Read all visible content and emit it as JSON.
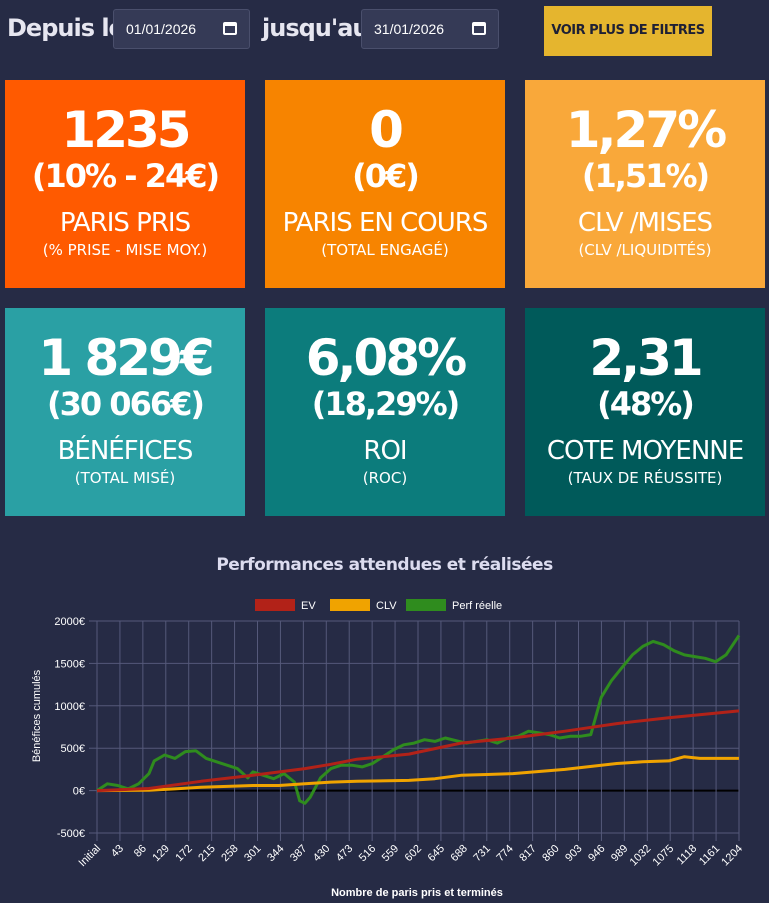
{
  "filters": {
    "from_label": "Depuis le",
    "from_value": "01/01/2026",
    "to_label": "jusqu'au",
    "to_value": "31/01/2026",
    "more_filters_label": "VOIR PLUS DE FILTRES"
  },
  "cards": [
    {
      "value": "1235",
      "sub": "(10% - 24€)",
      "label": "PARIS PRIS",
      "sublabel": "(% PRISE - MISE MOY.)",
      "color": "#ff5a00"
    },
    {
      "value": "0",
      "sub": "(0€)",
      "label": "PARIS EN COURS",
      "sublabel": "(TOTAL ENGAGÉ)",
      "color": "#f78400"
    },
    {
      "value": "1,27%",
      "sub": "(1,51%)",
      "label": "CLV /MISES",
      "sublabel": "(CLV /LIQUIDITÉS)",
      "color": "#f9a83a"
    },
    {
      "value": "1 829€",
      "sub": "(30 066€)",
      "label": "BÉNÉFICES",
      "sublabel": "(TOTAL MISÉ)",
      "color": "#2aa0a4"
    },
    {
      "value": "6,08%",
      "sub": "(18,29%)",
      "label": "ROI",
      "sublabel": "(ROC)",
      "color": "#0c7c7c"
    },
    {
      "value": "2,31",
      "sub": "(48%)",
      "label": "COTE MOYENNE",
      "sublabel": "(TAUX DE RÉUSSITE)",
      "color": "#005a5a"
    }
  ],
  "chart_data": {
    "type": "line",
    "title": "Performances attendues et réalisées",
    "xlabel": "Nombre de paris pris et terminés",
    "ylabel": "Bénéfices cumulés",
    "x_tick_labels": [
      "Initial",
      "43",
      "86",
      "129",
      "172",
      "215",
      "258",
      "301",
      "344",
      "387",
      "430",
      "473",
      "516",
      "559",
      "602",
      "645",
      "688",
      "731",
      "774",
      "817",
      "860",
      "903",
      "946",
      "989",
      "1032",
      "1075",
      "1118",
      "1161",
      "1204"
    ],
    "x_range": [
      0,
      1235
    ],
    "y_ticks": [
      -500,
      0,
      500,
      1000,
      1500,
      2000
    ],
    "y_tick_labels": [
      "-500€",
      "0€",
      "500€",
      "1000€",
      "1500€",
      "2000€"
    ],
    "ylim": [
      -500,
      2000
    ],
    "legend_position": "top",
    "grid": true,
    "series": [
      {
        "name": "EV",
        "color": "#b22218",
        "points": [
          [
            0,
            0
          ],
          [
            100,
            25
          ],
          [
            200,
            110
          ],
          [
            300,
            180
          ],
          [
            400,
            260
          ],
          [
            450,
            310
          ],
          [
            500,
            370
          ],
          [
            600,
            430
          ],
          [
            700,
            560
          ],
          [
            800,
            620
          ],
          [
            900,
            700
          ],
          [
            1000,
            790
          ],
          [
            1100,
            860
          ],
          [
            1235,
            940
          ]
        ]
      },
      {
        "name": "CLV",
        "color": "#f0a300",
        "points": [
          [
            0,
            0
          ],
          [
            100,
            5
          ],
          [
            150,
            20
          ],
          [
            200,
            40
          ],
          [
            300,
            60
          ],
          [
            350,
            60
          ],
          [
            400,
            80
          ],
          [
            450,
            100
          ],
          [
            500,
            110
          ],
          [
            600,
            120
          ],
          [
            650,
            140
          ],
          [
            700,
            180
          ],
          [
            750,
            190
          ],
          [
            800,
            200
          ],
          [
            900,
            250
          ],
          [
            1000,
            320
          ],
          [
            1050,
            340
          ],
          [
            1100,
            350
          ],
          [
            1130,
            400
          ],
          [
            1160,
            380
          ],
          [
            1235,
            380
          ]
        ]
      },
      {
        "name": "Perf réelle",
        "color": "#2f8c1e",
        "points": [
          [
            0,
            0
          ],
          [
            20,
            80
          ],
          [
            40,
            60
          ],
          [
            60,
            20
          ],
          [
            80,
            80
          ],
          [
            100,
            200
          ],
          [
            110,
            350
          ],
          [
            130,
            420
          ],
          [
            150,
            380
          ],
          [
            170,
            460
          ],
          [
            190,
            470
          ],
          [
            210,
            380
          ],
          [
            230,
            340
          ],
          [
            250,
            300
          ],
          [
            270,
            260
          ],
          [
            290,
            150
          ],
          [
            300,
            220
          ],
          [
            320,
            180
          ],
          [
            340,
            140
          ],
          [
            360,
            200
          ],
          [
            380,
            100
          ],
          [
            390,
            -120
          ],
          [
            400,
            -150
          ],
          [
            410,
            -80
          ],
          [
            430,
            150
          ],
          [
            450,
            260
          ],
          [
            470,
            300
          ],
          [
            490,
            300
          ],
          [
            510,
            280
          ],
          [
            530,
            320
          ],
          [
            550,
            400
          ],
          [
            570,
            480
          ],
          [
            590,
            540
          ],
          [
            610,
            560
          ],
          [
            630,
            600
          ],
          [
            650,
            580
          ],
          [
            670,
            620
          ],
          [
            690,
            590
          ],
          [
            710,
            560
          ],
          [
            730,
            580
          ],
          [
            750,
            600
          ],
          [
            770,
            560
          ],
          [
            790,
            620
          ],
          [
            810,
            640
          ],
          [
            830,
            700
          ],
          [
            850,
            680
          ],
          [
            870,
            660
          ],
          [
            890,
            620
          ],
          [
            910,
            640
          ],
          [
            930,
            640
          ],
          [
            950,
            660
          ],
          [
            970,
            1100
          ],
          [
            990,
            1300
          ],
          [
            1010,
            1450
          ],
          [
            1030,
            1600
          ],
          [
            1050,
            1700
          ],
          [
            1070,
            1760
          ],
          [
            1090,
            1720
          ],
          [
            1110,
            1650
          ],
          [
            1130,
            1600
          ],
          [
            1150,
            1580
          ],
          [
            1170,
            1560
          ],
          [
            1190,
            1520
          ],
          [
            1210,
            1600
          ],
          [
            1235,
            1829
          ]
        ]
      }
    ]
  }
}
